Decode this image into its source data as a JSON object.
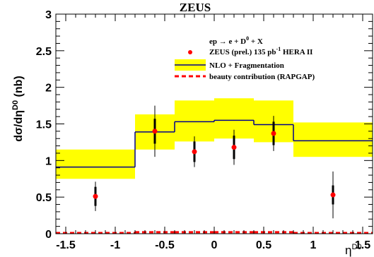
{
  "chart_data": {
    "type": "line",
    "title": "ZEUS",
    "ylabel": {
      "main": "dσ/dη",
      "sup": "D0",
      "unit": " (nb)"
    },
    "xlabel": {
      "main": "η",
      "sup": "D0"
    },
    "xlim": [
      -1.6,
      1.6
    ],
    "ylim": [
      0,
      3
    ],
    "x_ticks": [
      "-1.5",
      "-1",
      "-0.5",
      "0",
      "0.5",
      "1",
      "1.5"
    ],
    "y_ticks": [
      "0",
      "0.5",
      "1",
      "1.5",
      "2",
      "2.5",
      "3"
    ],
    "process": {
      "main": "ep → e + D",
      "sup": "0",
      "tail": " + X"
    },
    "bin_edges": [
      -1.6,
      -0.8,
      -0.4,
      0.0,
      0.4,
      0.8,
      1.6
    ],
    "series": [
      {
        "name": {
          "pre": "ZEUS (prel.) 135 pb",
          "sup": "-1",
          "post": " HERA II"
        },
        "kind": "points",
        "x": [
          -1.2,
          -0.6,
          -0.2,
          0.2,
          0.6,
          1.2
        ],
        "y": [
          0.51,
          1.4,
          1.12,
          1.18,
          1.37,
          0.53
        ],
        "err_stat": [
          0.13,
          0.17,
          0.14,
          0.16,
          0.16,
          0.13
        ],
        "err_tot": [
          0.2,
          0.35,
          0.21,
          0.24,
          0.24,
          0.32
        ],
        "color": "#ff0000"
      },
      {
        "name": "NLO + Fragmentation",
        "kind": "step_band",
        "central": [
          0.91,
          1.39,
          1.53,
          1.55,
          1.49,
          1.27
        ],
        "low": [
          0.75,
          1.15,
          1.26,
          1.3,
          1.25,
          1.05
        ],
        "high": [
          1.15,
          1.63,
          1.82,
          1.85,
          1.82,
          1.52
        ],
        "line_color": "#00008b",
        "band_color": "#ffff00"
      },
      {
        "name": "beauty contribution (RAPGAP)",
        "kind": "step_dashed",
        "values": [
          0.01,
          0.02,
          0.02,
          0.02,
          0.02,
          0.01
        ],
        "color": "#ff0000"
      }
    ],
    "legend_position": "top-right",
    "grid": false
  }
}
